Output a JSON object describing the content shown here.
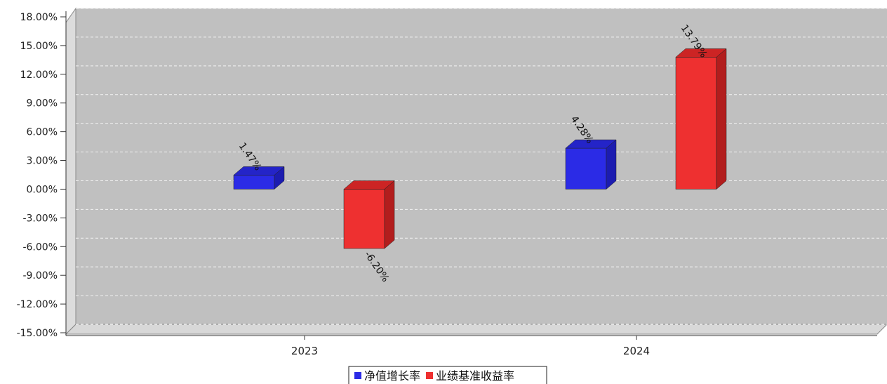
{
  "chart_data": {
    "type": "bar",
    "categories": [
      "2023",
      "2024"
    ],
    "series": [
      {
        "name": "净值增长率",
        "values": [
          1.47,
          4.28
        ],
        "labels": [
          "1.47%",
          "4.28%"
        ],
        "color": "#2b2be6",
        "side_color": "#1c1cb0",
        "top_color": "#2424c8"
      },
      {
        "name": "业绩基准收益率",
        "values": [
          -6.2,
          13.79
        ],
        "labels": [
          "-6.20%",
          "13.79%"
        ],
        "color": "#ee3030",
        "side_color": "#b21d1d",
        "top_color": "#cc2424"
      }
    ],
    "ylim": [
      -15,
      18
    ],
    "yticks": [
      18,
      15,
      12,
      9,
      6,
      3,
      0,
      -3,
      -6,
      -9,
      -12,
      -15
    ],
    "ytick_labels": [
      "18.00%",
      "15.00%",
      "12.00%",
      "9.00%",
      "6.00%",
      "3.00%",
      "0.00%",
      "-3.00%",
      "-6.00%",
      "-9.00%",
      "-12.00%",
      "-15.00%"
    ],
    "grid": true,
    "legend_position": "bottom-center",
    "plot_background": "#c0c0c0",
    "title": "",
    "xlabel": "",
    "ylabel": ""
  }
}
